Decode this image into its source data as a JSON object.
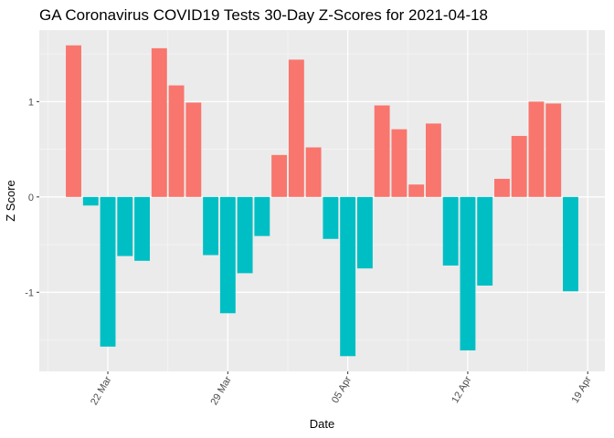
{
  "chart_data": {
    "type": "bar",
    "title": "GA Coronavirus COVID19 Tests 30-Day Z-Scores for 2021-04-18",
    "xlabel": "Date",
    "ylabel": "Z Score",
    "x": [
      "2021-03-20",
      "2021-03-21",
      "2021-03-22",
      "2021-03-23",
      "2021-03-24",
      "2021-03-25",
      "2021-03-26",
      "2021-03-27",
      "2021-03-28",
      "2021-03-29",
      "2021-03-30",
      "2021-03-31",
      "2021-04-01",
      "2021-04-02",
      "2021-04-03",
      "2021-04-04",
      "2021-04-05",
      "2021-04-06",
      "2021-04-07",
      "2021-04-08",
      "2021-04-09",
      "2021-04-10",
      "2021-04-11",
      "2021-04-12",
      "2021-04-13",
      "2021-04-14",
      "2021-04-15",
      "2021-04-16",
      "2021-04-17",
      "2021-04-18"
    ],
    "values": [
      1.59,
      -0.09,
      -1.57,
      -0.62,
      -0.67,
      1.56,
      1.17,
      0.99,
      -0.61,
      -1.22,
      -0.8,
      -0.41,
      0.44,
      1.44,
      0.52,
      -0.44,
      -1.67,
      -0.75,
      0.96,
      0.71,
      0.13,
      0.77,
      -0.72,
      -1.61,
      -0.93,
      0.19,
      0.64,
      1.0,
      0.98,
      -0.99
    ],
    "x_ticks": [
      "22 Mar",
      "29 Mar",
      "05 Apr",
      "12 Apr",
      "19 Apr"
    ],
    "x_tick_dates": [
      "2021-03-22",
      "2021-03-29",
      "2021-04-05",
      "2021-04-12",
      "2021-04-19"
    ],
    "x_range": [
      "2021-03-18",
      "2021-04-20"
    ],
    "y_ticks": [
      1,
      0,
      -1
    ],
    "y_tick_labels": [
      "1",
      "0",
      "-1"
    ],
    "ylim": [
      -1.83,
      1.75
    ],
    "grid": true,
    "legend": "none",
    "colors": {
      "positive": "#F8766D",
      "negative": "#00BFC4",
      "panel_background": "#EBEBEB",
      "grid_major": "#FFFFFF",
      "grid_minor": "#F5F5F5"
    }
  }
}
